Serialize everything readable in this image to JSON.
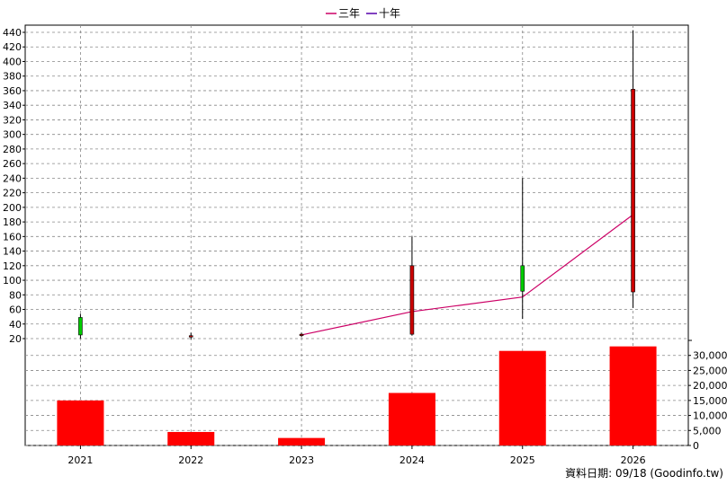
{
  "chart_data": {
    "type": "candlestick+line+bar",
    "categories": [
      "2021",
      "2022",
      "2023",
      "2024",
      "2025",
      "2026"
    ],
    "legend": {
      "placement": "top-center",
      "items": [
        {
          "name": "三年",
          "color": "#cc0066"
        },
        {
          "name": "十年",
          "color": "#5500aa"
        }
      ]
    },
    "price_axis": {
      "ylim": [
        20,
        440
      ],
      "ticks": [
        "20",
        "40",
        "60",
        "80",
        "100",
        "120",
        "140",
        "160",
        "180",
        "200",
        "220",
        "240",
        "260",
        "280",
        "300",
        "320",
        "340",
        "360",
        "380",
        "400",
        "420",
        "440"
      ]
    },
    "volume_axis": {
      "ylim": [
        0,
        35000
      ],
      "ticks": [
        "0",
        "5,000",
        "10,000",
        "15,000",
        "20,000",
        "25,000",
        "30,000"
      ]
    },
    "candles": [
      {
        "x": "2021",
        "open": 25,
        "close": 49,
        "high": 54,
        "low": 20,
        "up": true
      },
      {
        "x": "2022",
        "open": 23,
        "close": 24,
        "high": 28,
        "low": 19,
        "up": false
      },
      {
        "x": "2023",
        "open": 25,
        "close": 26,
        "high": 28,
        "low": 22,
        "up": false
      },
      {
        "x": "2024",
        "open": 120,
        "close": 26,
        "high": 160,
        "low": 24,
        "up": false
      },
      {
        "x": "2025",
        "open": 85,
        "close": 120,
        "high": 240,
        "low": 47,
        "up": true
      },
      {
        "x": "2026",
        "open": 362,
        "close": 84,
        "high": 443,
        "low": 62,
        "up": false
      }
    ],
    "series": [
      {
        "name": "三年",
        "x": [
          "2023",
          "2024",
          "2025",
          "2026"
        ],
        "values": [
          25,
          57,
          77,
          190
        ]
      }
    ],
    "volume": [
      15000,
      4500,
      2500,
      17500,
      31500,
      33000
    ],
    "colors": {
      "up": "#00cc00",
      "down": "#cc0000",
      "volume": "#ff0000",
      "line3": "#cc0066"
    },
    "grid": true
  },
  "footer": {
    "credit": "資料日期: 09/18  (Goodinfo.tw)"
  }
}
